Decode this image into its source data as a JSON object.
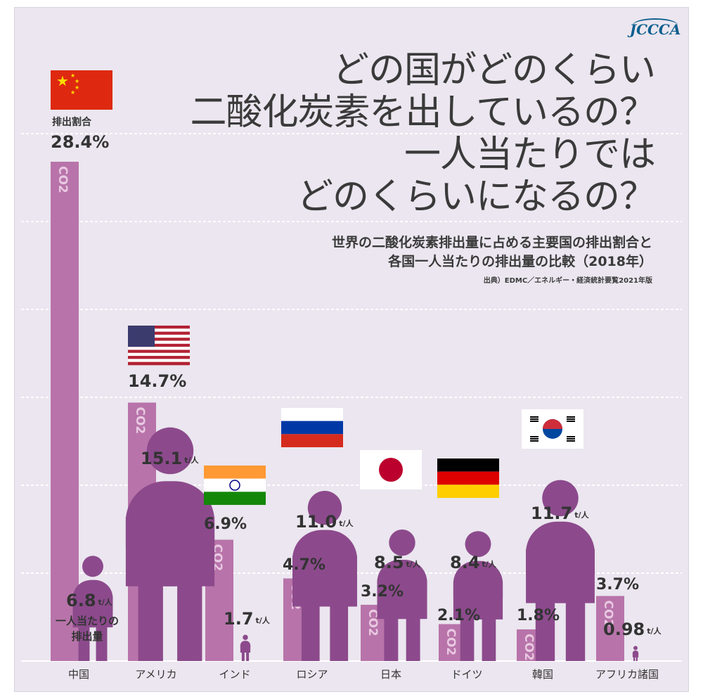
{
  "logo_text": "JCCCA",
  "title_lines": [
    "どの国がどのくらい",
    "二酸化炭素を出しているの？",
    "一人当たりでは",
    "どのくらいになるの？"
  ],
  "subtitle_lines": [
    "世界の二酸化炭素排出量に占める主要国の排出割合と",
    "各国一人当たりの排出量の比較（2018年）"
  ],
  "source": "出典）EDMC／エネルギー・経済統計要覧2021年版",
  "colors": {
    "share_bar": "#b874aa",
    "person": "#8c4a8c",
    "background": "#ebe6ef",
    "text": "#333333"
  },
  "chart_data": {
    "type": "bar",
    "categories": [
      "中国",
      "アメリカ",
      "インド",
      "ロシア",
      "日本",
      "ドイツ",
      "韓国",
      "アフリカ諸国"
    ],
    "series": [
      {
        "values": [
          28.4,
          14.7,
          6.9,
          4.7,
          3.2,
          2.1,
          1.8,
          3.7
        ],
        "unit": "%"
      },
      {
        "values": [
          6.8,
          15.1,
          1.7,
          11.0,
          8.5,
          8.4,
          11.7,
          0.98
        ],
        "unit": "t/人"
      }
    ],
    "share_labels": [
      "28.4%",
      "14.7%",
      "6.9%",
      "4.7%",
      "3.2%",
      "2.1%",
      "1.8%",
      "3.7%"
    ],
    "per_capita_labels": [
      "6.8",
      "15.1",
      "1.7",
      "11.0",
      "8.5",
      "8.4",
      "11.7",
      "0.98"
    ],
    "per_capita_unit": "t/人",
    "bar_text": "CO2",
    "share_caption": "排出割合",
    "per_capita_caption_lines": [
      "一人当たりの",
      "排出量"
    ],
    "flags": [
      "china-flag",
      "usa-flag",
      "india-flag",
      "russia-flag",
      "japan-flag",
      "germany-flag",
      "korea-flag",
      ""
    ],
    "grid": true
  }
}
